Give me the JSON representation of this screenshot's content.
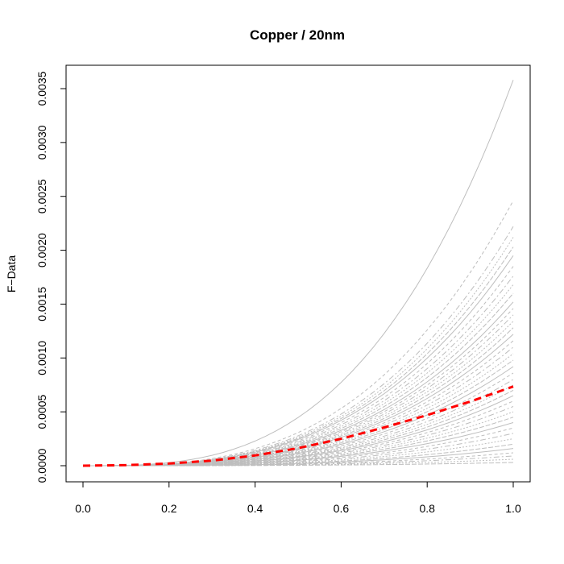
{
  "chart_data": {
    "type": "line",
    "title": "Copper / 20nm",
    "xlabel": "",
    "ylabel": "F−Data",
    "xlim": [
      0.0,
      1.0
    ],
    "ylim": [
      0.0,
      0.0035
    ],
    "x_ticks": [
      0.0,
      0.2,
      0.4,
      0.6,
      0.8,
      1.0
    ],
    "x_tick_labels": [
      "0.0",
      "0.2",
      "0.4",
      "0.6",
      "0.8",
      "1.0"
    ],
    "y_ticks": [
      0.0,
      0.0005,
      0.001,
      0.0015,
      0.002,
      0.0025,
      0.003,
      0.0035
    ],
    "y_tick_labels": [
      "0.0000",
      "0.0005",
      "0.0010",
      "0.0015",
      "0.0020",
      "0.0025",
      "0.0030",
      "0.0035"
    ],
    "grid": false,
    "colors": {
      "sample_curves": "#bebebe",
      "mean_curve": "#ff0000"
    },
    "sample_curves_end_values": [
      0.00358,
      0.00246,
      0.00222,
      0.00212,
      0.00203,
      0.00195,
      0.00185,
      0.00176,
      0.00168,
      0.0016,
      0.00152,
      0.00146,
      0.0014,
      0.00134,
      0.00128,
      0.00122,
      0.00116,
      0.0011,
      0.00104,
      0.00098,
      0.00092,
      0.00086,
      0.0008,
      0.00075,
      0.0007,
      0.00065,
      0.0006,
      0.00055,
      0.0005,
      0.00045,
      0.0004,
      0.00035,
      0.0003,
      0.00025,
      0.0002,
      0.00016,
      0.00012,
      9e-05,
      6e-05,
      3e-05
    ],
    "sample_curves_exponent": 3,
    "series": [
      {
        "x": [
          0.0,
          0.1,
          0.2,
          0.3,
          0.4,
          0.5,
          0.6,
          0.7,
          0.8,
          0.9,
          1.0
        ],
        "values": [
          0.0,
          5e-06,
          2e-05,
          4.7e-05,
          9.5e-05,
          0.000163,
          0.00025,
          0.000355,
          0.00047,
          0.000595,
          0.000735
        ]
      }
    ]
  }
}
